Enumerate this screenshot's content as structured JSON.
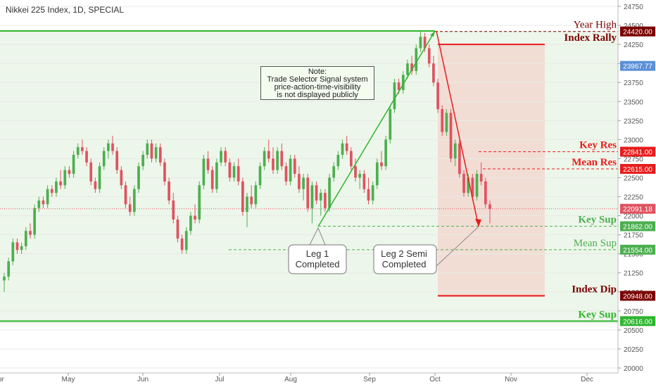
{
  "header": {
    "title": "Nikkei 225 Index, 1D, SPECIAL"
  },
  "note": {
    "lines": [
      "Note:",
      "Trade Selector Signal system",
      "price-action-time-visibility",
      "is not displayed publicly"
    ]
  },
  "colors": {
    "up": "#4caf50",
    "down": "#e05260",
    "green_line": "#2fb52f",
    "red_line": "#e81c1c",
    "dark_red": "#7a0000",
    "current_price_dot": "#e05260",
    "axis_text": "#555555"
  },
  "chart_data": {
    "type": "candlestick",
    "title": "Nikkei 225 Index, 1D, SPECIAL",
    "ylim": [
      20000,
      24800
    ],
    "y_ticks": [
      20000,
      20250,
      20500,
      20750,
      21000,
      21250,
      21500,
      21750,
      22000,
      22250,
      22500,
      22750,
      23000,
      23250,
      23500,
      23750,
      24000,
      24250,
      24500,
      24750
    ],
    "x_labels": [
      "Apr",
      "May",
      "Jun",
      "Jul",
      "Aug",
      "Sep",
      "Oct",
      "Nov",
      "Dec"
    ],
    "price_tags": [
      {
        "value": "24420.00",
        "color": "#7a0000"
      },
      {
        "value": "23967.77",
        "color": "#5a8fd6"
      },
      {
        "value": "22841.00",
        "color": "#e81c1c"
      },
      {
        "value": "22615.00",
        "color": "#e81c1c"
      },
      {
        "value": "22091.18",
        "color": "#e05260"
      },
      {
        "value": "21862.00",
        "color": "#4caf50"
      },
      {
        "value": "21554.00",
        "color": "#4caf50"
      },
      {
        "value": "20948.00",
        "color": "#7a0000"
      },
      {
        "value": "20616.00",
        "color": "#2fb52f"
      }
    ],
    "levels": [
      {
        "label": "Year High",
        "value": 24420,
        "color": "#7a0000",
        "style": "dashed"
      },
      {
        "label": "Index Rally",
        "value": 24250,
        "color": "#e81c1c",
        "style": "solid"
      },
      {
        "label": "Key Res",
        "value": 22841,
        "color": "#e81c1c",
        "style": "dashed"
      },
      {
        "label": "Mean Res",
        "value": 22615,
        "color": "#e81c1c",
        "style": "dashed"
      },
      {
        "label": "Key Sup",
        "value": 21862,
        "color": "#4caf50",
        "style": "dashed"
      },
      {
        "label": "Mean Sup",
        "value": 21554,
        "color": "#4caf50",
        "style": "dashed"
      },
      {
        "label": "Index Dip",
        "value": 20948,
        "color": "#e81c1c",
        "style": "solid"
      },
      {
        "label": "Key Sup",
        "value": 20616,
        "color": "#2fb52f",
        "style": "solid"
      }
    ],
    "callouts": [
      {
        "lines": [
          "Leg 1",
          "Completed"
        ]
      },
      {
        "lines": [
          "Leg 2 Semi",
          "Completed"
        ]
      }
    ],
    "candles": [
      {
        "o": 21150,
        "h": 21250,
        "l": 21000,
        "c": 21200
      },
      {
        "o": 21200,
        "h": 21450,
        "l": 21150,
        "c": 21400
      },
      {
        "o": 21400,
        "h": 21700,
        "l": 21350,
        "c": 21650
      },
      {
        "o": 21650,
        "h": 21700,
        "l": 21500,
        "c": 21550
      },
      {
        "o": 21550,
        "h": 21650,
        "l": 21500,
        "c": 21600
      },
      {
        "o": 21600,
        "h": 21850,
        "l": 21550,
        "c": 21800
      },
      {
        "o": 21800,
        "h": 21900,
        "l": 21700,
        "c": 21750
      },
      {
        "o": 21750,
        "h": 22150,
        "l": 21700,
        "c": 22100
      },
      {
        "o": 22100,
        "h": 22250,
        "l": 22050,
        "c": 22200
      },
      {
        "o": 22200,
        "h": 22250,
        "l": 22100,
        "c": 22150
      },
      {
        "o": 22150,
        "h": 22400,
        "l": 22100,
        "c": 22350
      },
      {
        "o": 22350,
        "h": 22400,
        "l": 22250,
        "c": 22300
      },
      {
        "o": 22300,
        "h": 22500,
        "l": 22250,
        "c": 22450
      },
      {
        "o": 22450,
        "h": 22600,
        "l": 22350,
        "c": 22400
      },
      {
        "o": 22400,
        "h": 22650,
        "l": 22350,
        "c": 22600
      },
      {
        "o": 22600,
        "h": 22650,
        "l": 22500,
        "c": 22550
      },
      {
        "o": 22550,
        "h": 22850,
        "l": 22500,
        "c": 22800
      },
      {
        "o": 22800,
        "h": 22950,
        "l": 22750,
        "c": 22900
      },
      {
        "o": 22900,
        "h": 23000,
        "l": 22800,
        "c": 22850
      },
      {
        "o": 22850,
        "h": 22900,
        "l": 22650,
        "c": 22700
      },
      {
        "o": 22700,
        "h": 22750,
        "l": 22400,
        "c": 22450
      },
      {
        "o": 22450,
        "h": 22500,
        "l": 22300,
        "c": 22350
      },
      {
        "o": 22350,
        "h": 22700,
        "l": 22300,
        "c": 22650
      },
      {
        "o": 22650,
        "h": 22900,
        "l": 22600,
        "c": 22850
      },
      {
        "o": 22850,
        "h": 23000,
        "l": 22750,
        "c": 22950
      },
      {
        "o": 22950,
        "h": 23050,
        "l": 22800,
        "c": 22850
      },
      {
        "o": 22850,
        "h": 22900,
        "l": 22550,
        "c": 22600
      },
      {
        "o": 22600,
        "h": 22650,
        "l": 22350,
        "c": 22400
      },
      {
        "o": 22400,
        "h": 22450,
        "l": 22100,
        "c": 22150
      },
      {
        "o": 22150,
        "h": 22250,
        "l": 22000,
        "c": 22050
      },
      {
        "o": 22050,
        "h": 22400,
        "l": 22000,
        "c": 22350
      },
      {
        "o": 22350,
        "h": 22700,
        "l": 22300,
        "c": 22650
      },
      {
        "o": 22650,
        "h": 22850,
        "l": 22600,
        "c": 22800
      },
      {
        "o": 22800,
        "h": 23000,
        "l": 22750,
        "c": 22950
      },
      {
        "o": 22950,
        "h": 23000,
        "l": 22700,
        "c": 22750
      },
      {
        "o": 22750,
        "h": 22950,
        "l": 22700,
        "c": 22900
      },
      {
        "o": 22900,
        "h": 22950,
        "l": 22650,
        "c": 22700
      },
      {
        "o": 22700,
        "h": 22750,
        "l": 22400,
        "c": 22450
      },
      {
        "o": 22450,
        "h": 22500,
        "l": 22150,
        "c": 22200
      },
      {
        "o": 22200,
        "h": 22300,
        "l": 21900,
        "c": 21950
      },
      {
        "o": 21950,
        "h": 22000,
        "l": 21650,
        "c": 21700
      },
      {
        "o": 21700,
        "h": 21750,
        "l": 21500,
        "c": 21550
      },
      {
        "o": 21550,
        "h": 21850,
        "l": 21500,
        "c": 21800
      },
      {
        "o": 21800,
        "h": 22050,
        "l": 21750,
        "c": 22000
      },
      {
        "o": 22000,
        "h": 22150,
        "l": 21900,
        "c": 21950
      },
      {
        "o": 21950,
        "h": 22450,
        "l": 21900,
        "c": 22400
      },
      {
        "o": 22400,
        "h": 22800,
        "l": 22350,
        "c": 22750
      },
      {
        "o": 22750,
        "h": 22850,
        "l": 22550,
        "c": 22600
      },
      {
        "o": 22600,
        "h": 22650,
        "l": 22300,
        "c": 22350
      },
      {
        "o": 22350,
        "h": 22750,
        "l": 22300,
        "c": 22700
      },
      {
        "o": 22700,
        "h": 22900,
        "l": 22650,
        "c": 22850
      },
      {
        "o": 22850,
        "h": 22900,
        "l": 22650,
        "c": 22700
      },
      {
        "o": 22700,
        "h": 22750,
        "l": 22450,
        "c": 22500
      },
      {
        "o": 22500,
        "h": 22700,
        "l": 22450,
        "c": 22650
      },
      {
        "o": 22650,
        "h": 22750,
        "l": 22400,
        "c": 22450
      },
      {
        "o": 22450,
        "h": 22500,
        "l": 22000,
        "c": 22050
      },
      {
        "o": 22050,
        "h": 22300,
        "l": 21850,
        "c": 22250
      },
      {
        "o": 22250,
        "h": 22400,
        "l": 22100,
        "c": 22150
      },
      {
        "o": 22150,
        "h": 22450,
        "l": 22100,
        "c": 22400
      },
      {
        "o": 22400,
        "h": 22700,
        "l": 22350,
        "c": 22650
      },
      {
        "o": 22650,
        "h": 22900,
        "l": 22600,
        "c": 22850
      },
      {
        "o": 22850,
        "h": 23000,
        "l": 22700,
        "c": 22750
      },
      {
        "o": 22750,
        "h": 22900,
        "l": 22550,
        "c": 22600
      },
      {
        "o": 22600,
        "h": 22900,
        "l": 22550,
        "c": 22850
      },
      {
        "o": 22850,
        "h": 22950,
        "l": 22600,
        "c": 22650
      },
      {
        "o": 22650,
        "h": 22700,
        "l": 22400,
        "c": 22450
      },
      {
        "o": 22450,
        "h": 22800,
        "l": 22400,
        "c": 22750
      },
      {
        "o": 22750,
        "h": 22800,
        "l": 22500,
        "c": 22550
      },
      {
        "o": 22550,
        "h": 22650,
        "l": 22300,
        "c": 22350
      },
      {
        "o": 22350,
        "h": 22550,
        "l": 22200,
        "c": 22500
      },
      {
        "o": 22500,
        "h": 22550,
        "l": 22050,
        "c": 22100
      },
      {
        "o": 22100,
        "h": 22450,
        "l": 21900,
        "c": 22400
      },
      {
        "o": 22400,
        "h": 22450,
        "l": 22150,
        "c": 22200
      },
      {
        "o": 22200,
        "h": 22350,
        "l": 22000,
        "c": 22300
      },
      {
        "o": 22300,
        "h": 22350,
        "l": 22050,
        "c": 22100
      },
      {
        "o": 22100,
        "h": 22550,
        "l": 22050,
        "c": 22500
      },
      {
        "o": 22500,
        "h": 22700,
        "l": 22450,
        "c": 22650
      },
      {
        "o": 22650,
        "h": 22850,
        "l": 22600,
        "c": 22800
      },
      {
        "o": 22800,
        "h": 23000,
        "l": 22750,
        "c": 22950
      },
      {
        "o": 22950,
        "h": 23050,
        "l": 22800,
        "c": 22850
      },
      {
        "o": 22850,
        "h": 22900,
        "l": 22600,
        "c": 22650
      },
      {
        "o": 22650,
        "h": 22750,
        "l": 22450,
        "c": 22500
      },
      {
        "o": 22500,
        "h": 22600,
        "l": 22350,
        "c": 22550
      },
      {
        "o": 22550,
        "h": 22600,
        "l": 22300,
        "c": 22350
      },
      {
        "o": 22350,
        "h": 22500,
        "l": 22150,
        "c": 22200
      },
      {
        "o": 22200,
        "h": 22450,
        "l": 22150,
        "c": 22400
      },
      {
        "o": 22400,
        "h": 22750,
        "l": 22350,
        "c": 22700
      },
      {
        "o": 22700,
        "h": 22850,
        "l": 22600,
        "c": 22650
      },
      {
        "o": 22650,
        "h": 23050,
        "l": 22600,
        "c": 23000
      },
      {
        "o": 23000,
        "h": 23450,
        "l": 22950,
        "c": 23400
      },
      {
        "o": 23400,
        "h": 23800,
        "l": 23350,
        "c": 23750
      },
      {
        "o": 23750,
        "h": 23800,
        "l": 23600,
        "c": 23650
      },
      {
        "o": 23650,
        "h": 23900,
        "l": 23600,
        "c": 23850
      },
      {
        "o": 23850,
        "h": 24050,
        "l": 23800,
        "c": 24000
      },
      {
        "o": 24000,
        "h": 24100,
        "l": 23850,
        "c": 23900
      },
      {
        "o": 23900,
        "h": 24250,
        "l": 23850,
        "c": 24200
      },
      {
        "o": 24200,
        "h": 24420,
        "l": 24150,
        "c": 24350
      },
      {
        "o": 24350,
        "h": 24400,
        "l": 24150,
        "c": 24200
      },
      {
        "o": 24200,
        "h": 24250,
        "l": 23950,
        "c": 24000
      },
      {
        "o": 24000,
        "h": 24100,
        "l": 23700,
        "c": 23750
      },
      {
        "o": 23750,
        "h": 23800,
        "l": 23350,
        "c": 23400
      },
      {
        "o": 23400,
        "h": 23450,
        "l": 23050,
        "c": 23100
      },
      {
        "o": 23100,
        "h": 23400,
        "l": 23050,
        "c": 23350
      },
      {
        "o": 23350,
        "h": 23400,
        "l": 22700,
        "c": 22750
      },
      {
        "o": 22750,
        "h": 23000,
        "l": 22650,
        "c": 22950
      },
      {
        "o": 22950,
        "h": 23000,
        "l": 22500,
        "c": 22550
      },
      {
        "o": 22550,
        "h": 22600,
        "l": 22250,
        "c": 22300
      },
      {
        "o": 22300,
        "h": 22550,
        "l": 22250,
        "c": 22500
      },
      {
        "o": 22500,
        "h": 22550,
        "l": 22200,
        "c": 22250
      },
      {
        "o": 22250,
        "h": 22600,
        "l": 22200,
        "c": 22550
      },
      {
        "o": 22550,
        "h": 22700,
        "l": 22400,
        "c": 22450
      },
      {
        "o": 22450,
        "h": 22500,
        "l": 22100,
        "c": 22150
      },
      {
        "o": 22150,
        "h": 22200,
        "l": 21900,
        "c": 22091
      }
    ]
  }
}
